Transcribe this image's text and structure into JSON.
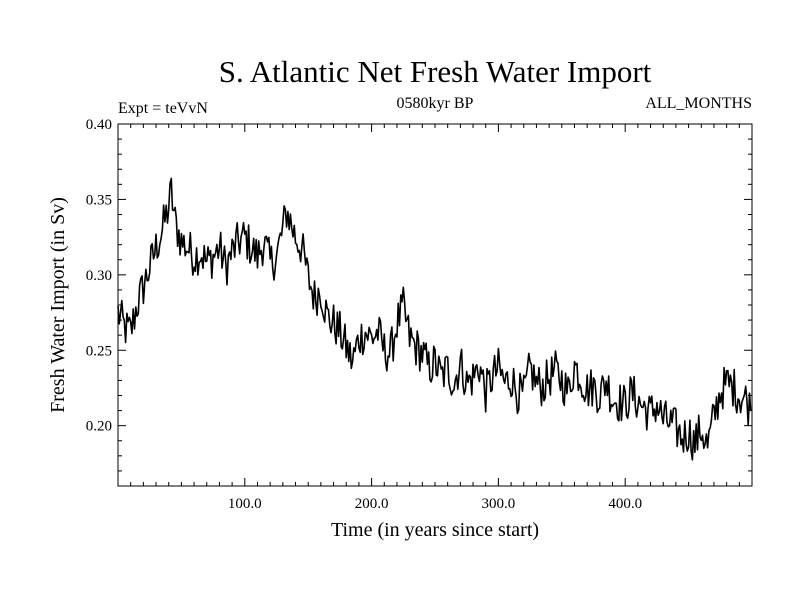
{
  "header": {
    "title": "S. Atlantic Net Fresh Water Import",
    "left_label": "Expt = teVvN",
    "center_label": "0580kyr BP",
    "right_label": "ALL_MONTHS"
  },
  "chart_data": {
    "type": "line",
    "title": "S. Atlantic Net Fresh Water Import",
    "xlabel": "Time (in years since start)",
    "ylabel": "Fresh Water Import (in Sv)",
    "xlim": [
      0,
      500
    ],
    "ylim": [
      0.16,
      0.4
    ],
    "xticks": [
      100,
      200,
      300,
      400
    ],
    "xtick_labels": [
      "100.0",
      "200.0",
      "300.0",
      "400.0"
    ],
    "yticks": [
      0.2,
      0.25,
      0.3,
      0.35,
      0.4
    ],
    "ytick_labels": [
      "0.20",
      "0.25",
      "0.30",
      "0.35",
      "0.40"
    ],
    "grid": false,
    "line_color": "#000000",
    "series": [
      {
        "x": [
          0,
          5,
          10,
          15,
          20,
          25,
          30,
          35,
          40,
          42,
          45,
          50,
          55,
          60,
          65,
          70,
          75,
          80,
          85,
          90,
          95,
          100,
          105,
          110,
          115,
          120,
          125,
          130,
          133,
          135,
          140,
          145,
          150,
          155,
          160,
          165,
          170,
          175,
          180,
          185,
          190,
          195,
          200,
          205,
          210,
          215,
          220,
          225,
          230,
          235,
          240,
          245,
          250,
          255,
          260,
          265,
          270,
          275,
          280,
          285,
          290,
          295,
          300,
          305,
          310,
          315,
          320,
          325,
          330,
          335,
          340,
          345,
          350,
          355,
          360,
          365,
          370,
          375,
          380,
          385,
          390,
          395,
          400,
          405,
          410,
          415,
          420,
          425,
          430,
          435,
          440,
          445,
          450,
          455,
          460,
          465,
          470,
          475,
          480,
          485,
          490,
          495,
          499
        ],
        "values": [
          0.275,
          0.265,
          0.262,
          0.28,
          0.292,
          0.305,
          0.318,
          0.33,
          0.345,
          0.355,
          0.335,
          0.322,
          0.318,
          0.312,
          0.315,
          0.308,
          0.312,
          0.318,
          0.305,
          0.315,
          0.322,
          0.325,
          0.318,
          0.312,
          0.322,
          0.308,
          0.312,
          0.33,
          0.342,
          0.338,
          0.325,
          0.318,
          0.298,
          0.285,
          0.29,
          0.272,
          0.268,
          0.262,
          0.252,
          0.242,
          0.258,
          0.262,
          0.258,
          0.262,
          0.25,
          0.248,
          0.268,
          0.278,
          0.258,
          0.252,
          0.248,
          0.238,
          0.242,
          0.232,
          0.238,
          0.228,
          0.242,
          0.228,
          0.232,
          0.24,
          0.222,
          0.232,
          0.238,
          0.228,
          0.232,
          0.222,
          0.22,
          0.238,
          0.228,
          0.226,
          0.232,
          0.236,
          0.23,
          0.222,
          0.24,
          0.232,
          0.224,
          0.226,
          0.22,
          0.23,
          0.218,
          0.216,
          0.214,
          0.222,
          0.216,
          0.212,
          0.208,
          0.214,
          0.204,
          0.202,
          0.198,
          0.192,
          0.196,
          0.188,
          0.198,
          0.186,
          0.206,
          0.222,
          0.228,
          0.226,
          0.22,
          0.218,
          0.21
        ]
      }
    ]
  }
}
